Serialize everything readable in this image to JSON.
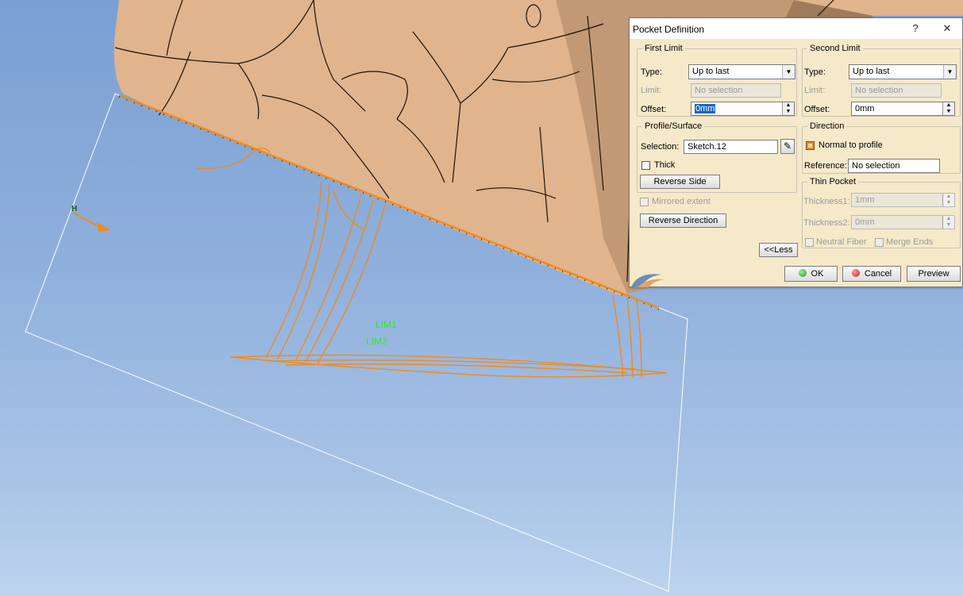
{
  "viewer": {
    "labels": {
      "lim1": "LIM1",
      "lim2": "LIM2",
      "axis_h": "H"
    }
  },
  "dialog": {
    "title": "Pocket Definition",
    "help_label": "?",
    "close_label": "✕",
    "first_limit": {
      "legend": "First Limit",
      "type_label": "Type:",
      "type_value": "Up to last",
      "limit_label": "Limit:",
      "limit_value": "No selection",
      "offset_label": "Offset:",
      "offset_value": "0mm"
    },
    "second_limit": {
      "legend": "Second Limit",
      "type_label": "Type:",
      "type_value": "Up to last",
      "limit_label": "Limit:",
      "limit_value": "No selection",
      "offset_label": "Offset:",
      "offset_value": "0mm"
    },
    "profile": {
      "legend": "Profile/Surface",
      "selection_label": "Selection:",
      "selection_value": "Sketch.12",
      "thick_label": "Thick",
      "reverse_side_label": "Reverse Side"
    },
    "direction": {
      "legend": "Direction",
      "normal_label": "Normal to profile",
      "normal_checked": true,
      "reference_label": "Reference:",
      "reference_value": "No selection"
    },
    "thin_pocket": {
      "legend": "Thin Pocket",
      "thickness1_label": "Thickness1:",
      "thickness1_value": "1mm",
      "thickness2_label": "Thickness2:",
      "thickness2_value": "0mm",
      "neutral_fiber_label": "Neutral Fiber",
      "merge_ends_label": "Merge Ends"
    },
    "mirrored_extent_label": "Mirrored extent",
    "reverse_direction_label": "Reverse Direction",
    "less_label": "<<Less",
    "ok_label": "OK",
    "cancel_label": "Cancel",
    "preview_label": "Preview"
  }
}
